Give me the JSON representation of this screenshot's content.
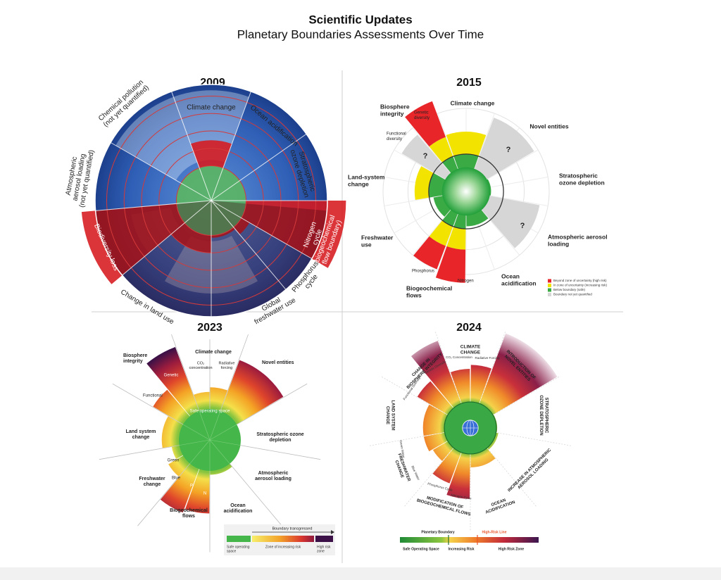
{
  "header": {
    "title": "Scientific Updates",
    "subtitle": "Planetary Boundaries Assessments Over Time"
  },
  "panels": [
    {
      "year": "2009",
      "labels": [
        [
          "Climate change"
        ],
        [
          "Ocean acidification"
        ],
        [
          "Stratospheric",
          "ozone depletion"
        ],
        [
          "Nitrogen",
          "cycle",
          "(biogeochemical",
          "flow boundary)"
        ],
        [
          "Phosphorus",
          "cycle"
        ],
        [
          "Global",
          "freshwater use"
        ],
        [
          "Change in land use"
        ],
        [
          "Biodiversity loss"
        ],
        [
          "Atmospheric",
          "aerosol loading",
          "(not yet quantified)"
        ],
        [
          "Chemical pollution",
          "(not yet quantified)"
        ]
      ]
    },
    {
      "year": "2015",
      "labels": [
        [
          "Climate change"
        ],
        [
          "Novel entities"
        ],
        [
          "Stratospheric",
          "ozone depletion"
        ],
        [
          "Atmospheric aerosol",
          "loading"
        ],
        [
          "Ocean",
          "acidification"
        ],
        [
          "Biogeochemical",
          "flows"
        ],
        [
          "Phosphorus"
        ],
        [
          "Nitrogen"
        ],
        [
          "Freshwater",
          "use"
        ],
        [
          "Land-system",
          "change"
        ],
        [
          "Biosphere",
          "integrity"
        ],
        [
          "Genetic",
          "diversity"
        ],
        [
          "Functional",
          "diversity"
        ],
        [
          "?"
        ],
        [
          "?"
        ],
        [
          "?"
        ]
      ],
      "legend": [
        [
          "Beyond zone of uncertainty (high risk)"
        ],
        [
          "In zone of uncertainty (increasing risk)"
        ],
        [
          "Below boundary (safe)"
        ],
        [
          "Boundary not yet quantified"
        ]
      ]
    },
    {
      "year": "2023",
      "labels": [
        [
          "Climate change"
        ],
        [
          "CO₂",
          "concentration"
        ],
        [
          "Radiative",
          "forcing"
        ],
        [
          "Novel entities"
        ],
        [
          "Stratospheric ozone",
          "depletion"
        ],
        [
          "Atmospheric",
          "aerosol loading"
        ],
        [
          "Ocean",
          "acidification"
        ],
        [
          "Biogeochemical",
          "flows"
        ],
        [
          "P"
        ],
        [
          "N"
        ],
        [
          "Freshwater",
          "change"
        ],
        [
          "Green"
        ],
        [
          "Blue"
        ],
        [
          "Land system",
          "change"
        ],
        [
          "Functional"
        ],
        [
          "Genetic"
        ],
        [
          "Biosphere",
          "integrity"
        ],
        [
          "Safe operating space"
        ]
      ],
      "legend": [
        [
          "Boundary transgressed"
        ],
        [
          "Safe operating",
          "space"
        ],
        [
          "Zone of increasing risk"
        ],
        [
          "High risk",
          "zone"
        ]
      ]
    },
    {
      "year": "2024",
      "labels": [
        [
          "CLIMATE",
          "CHANGE"
        ],
        [
          "CO₂ Concentration"
        ],
        [
          "Radiative Forcing"
        ],
        [
          "INTRODUCTION OF",
          "NOVEL ENTITIES"
        ],
        [
          "STRATOSPHERIC",
          "OZONE DEPLETION"
        ],
        [
          "INCREASE IN ATMOSPHERIC",
          "AEROSOL LOADING"
        ],
        [
          "OCEAN",
          "ACIDIFICATION"
        ],
        [
          "MODIFICATION OF",
          "BIOGEOCHEMICAL FLOWS"
        ],
        [
          "Phosphorus Cycle"
        ],
        [
          "Nitrogen Cycle"
        ],
        [
          "FRESHWATER",
          "CHANGE"
        ],
        [
          "Green Water"
        ],
        [
          "Blue Water"
        ],
        [
          "LAND SYSTEM",
          "CHANGE"
        ],
        [
          "CHANGE IN",
          "BIOSPHERE INTEGRITY"
        ],
        [
          "Functional Diversity"
        ],
        [
          "Genetic Diversity"
        ]
      ],
      "legend": [
        [
          "Planetary Boundary"
        ],
        [
          "High-Risk Line"
        ],
        [
          "Safe Operating Space"
        ],
        [
          "Increasing Risk"
        ],
        [
          "High Risk Zone"
        ]
      ]
    }
  ]
}
